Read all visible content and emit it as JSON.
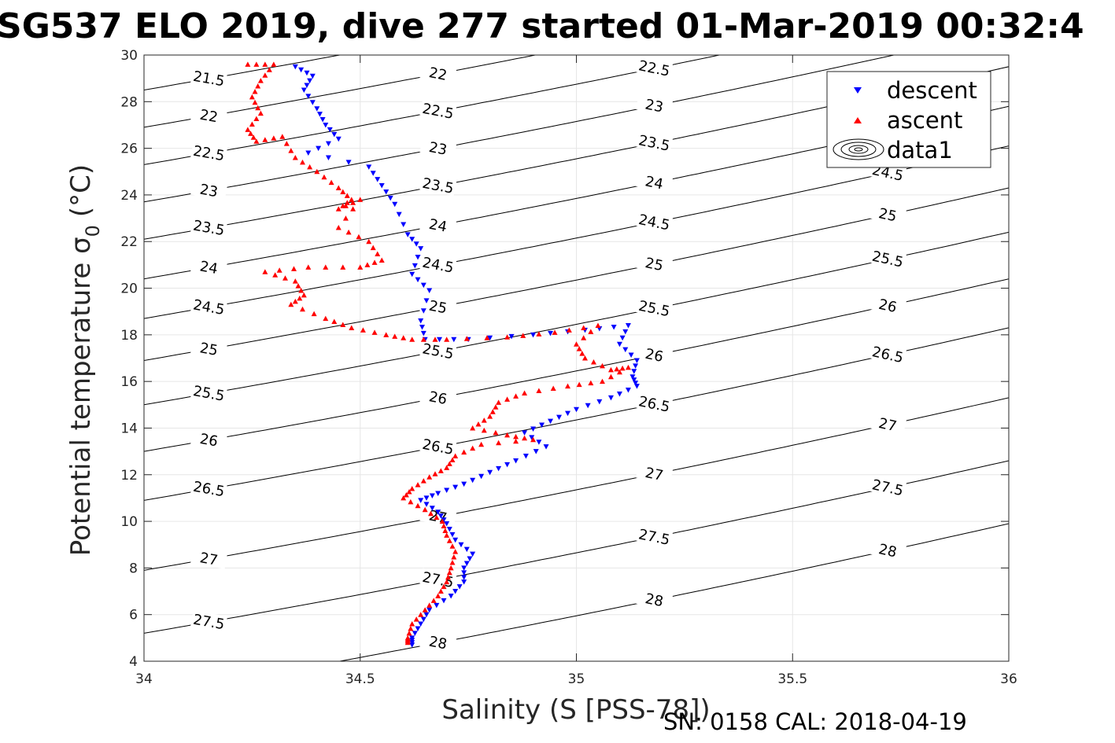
{
  "chart_data": {
    "type": "scatter",
    "title": "SG537 ELO 2019, dive 277 started 01-Mar-2019 00:32:4",
    "xlabel": "Salinity (S [PSS-78])",
    "ylabel_main": "Potential temperature σ",
    "ylabel_sub": "0",
    "ylabel_unit": "(°C)",
    "xlim": [
      34,
      36
    ],
    "ylim": [
      4,
      30
    ],
    "x_ticks": [
      "34",
      "34.5",
      "35",
      "35.5",
      "36"
    ],
    "y_ticks": [
      "4",
      "6",
      "8",
      "10",
      "12",
      "14",
      "16",
      "18",
      "20",
      "22",
      "24",
      "26",
      "28",
      "30"
    ],
    "grid": true,
    "legend_position": "top-right",
    "legend": [
      "descent",
      "ascent",
      "data1"
    ],
    "footer": "SN: 0158  CAL: 2018-04-19",
    "colors": {
      "descent": "#0000ff",
      "ascent": "#ff0000",
      "contour": "#000000",
      "grid": "#e6e6e6"
    },
    "contours": {
      "levels": [
        "21.5",
        "22",
        "22.5",
        "23",
        "23.5",
        "24",
        "24.5",
        "25",
        "25.5",
        "26",
        "26.5",
        "27",
        "27.5",
        "28"
      ],
      "reference_intercepts": [
        {
          "level": 21.5,
          "temperature_at_34": 28.5
        },
        {
          "level": 22,
          "temperature_at_34": 26.9
        },
        {
          "level": 22.5,
          "temperature_at_34": 25.3
        },
        {
          "level": 23,
          "temperature_at_34": 23.7
        },
        {
          "level": 23.5,
          "temperature_at_34": 22.1
        },
        {
          "level": 24,
          "temperature_at_34": 20.4
        },
        {
          "level": 24.5,
          "temperature_at_34": 18.7
        },
        {
          "level": 25,
          "temperature_at_34": 16.9
        },
        {
          "level": 25.5,
          "temperature_at_34": 15.0
        },
        {
          "level": 26,
          "temperature_at_34": 13.0
        },
        {
          "level": 26.5,
          "temperature_at_34": 10.9
        },
        {
          "level": 27,
          "temperature_at_34": 7.9
        },
        {
          "level": 27.5,
          "temperature_at_34": 5.2
        },
        {
          "level": 28,
          "temperature_at_34": 2.5
        }
      ]
    },
    "series": [
      {
        "name": "descent",
        "marker": "triangle-down",
        "points": [
          [
            34.35,
            29.5
          ],
          [
            34.39,
            29.1
          ],
          [
            34.37,
            28.5
          ],
          [
            34.4,
            27.7
          ],
          [
            34.42,
            27.0
          ],
          [
            34.45,
            26.4
          ],
          [
            34.38,
            25.8
          ],
          [
            34.52,
            25.2
          ],
          [
            34.55,
            24.4
          ],
          [
            34.58,
            23.6
          ],
          [
            34.61,
            22.3
          ],
          [
            34.64,
            21.7
          ],
          [
            34.62,
            20.6
          ],
          [
            34.66,
            19.9
          ],
          [
            34.64,
            18.6
          ],
          [
            34.65,
            17.8
          ],
          [
            34.75,
            17.8
          ],
          [
            34.9,
            18.0
          ],
          [
            35.02,
            18.2
          ],
          [
            35.12,
            18.4
          ],
          [
            35.1,
            17.6
          ],
          [
            35.14,
            16.9
          ],
          [
            35.13,
            16.2
          ],
          [
            35.14,
            15.8
          ],
          [
            35.08,
            15.3
          ],
          [
            35.0,
            14.8
          ],
          [
            34.94,
            14.3
          ],
          [
            34.88,
            13.8
          ],
          [
            34.93,
            13.2
          ],
          [
            34.86,
            12.6
          ],
          [
            34.8,
            12.1
          ],
          [
            34.74,
            11.6
          ],
          [
            34.68,
            11.2
          ],
          [
            34.64,
            10.9
          ],
          [
            34.68,
            10.4
          ],
          [
            34.7,
            9.9
          ],
          [
            34.72,
            9.2
          ],
          [
            34.76,
            8.6
          ],
          [
            34.74,
            8.0
          ],
          [
            34.74,
            7.4
          ],
          [
            34.71,
            6.8
          ],
          [
            34.66,
            6.2
          ],
          [
            34.64,
            5.6
          ],
          [
            34.62,
            5.0
          ],
          [
            34.62,
            4.7
          ]
        ]
      },
      {
        "name": "ascent",
        "marker": "triangle-up",
        "points": [
          [
            34.24,
            29.6
          ],
          [
            34.3,
            29.6
          ],
          [
            34.27,
            28.9
          ],
          [
            34.25,
            28.2
          ],
          [
            34.27,
            27.5
          ],
          [
            34.24,
            26.8
          ],
          [
            34.26,
            26.3
          ],
          [
            34.32,
            26.5
          ],
          [
            34.35,
            25.6
          ],
          [
            34.4,
            25.0
          ],
          [
            34.45,
            24.3
          ],
          [
            34.48,
            23.8
          ],
          [
            34.45,
            23.4
          ],
          [
            34.5,
            23.8
          ],
          [
            34.45,
            22.6
          ],
          [
            34.52,
            22.0
          ],
          [
            34.55,
            21.2
          ],
          [
            34.5,
            20.9
          ],
          [
            34.38,
            20.9
          ],
          [
            34.28,
            20.7
          ],
          [
            34.35,
            20.3
          ],
          [
            34.37,
            19.7
          ],
          [
            34.34,
            19.3
          ],
          [
            34.42,
            18.7
          ],
          [
            34.48,
            18.3
          ],
          [
            34.56,
            18.0
          ],
          [
            34.62,
            17.8
          ],
          [
            34.7,
            17.8
          ],
          [
            34.84,
            17.9
          ],
          [
            34.95,
            18.1
          ],
          [
            35.05,
            18.4
          ],
          [
            35.0,
            17.6
          ],
          [
            35.02,
            17.0
          ],
          [
            35.08,
            16.5
          ],
          [
            35.12,
            16.6
          ],
          [
            35.06,
            16.0
          ],
          [
            34.98,
            15.8
          ],
          [
            34.88,
            15.5
          ],
          [
            34.82,
            15.1
          ],
          [
            34.8,
            14.5
          ],
          [
            34.76,
            14.0
          ],
          [
            34.84,
            13.7
          ],
          [
            34.9,
            13.5
          ],
          [
            34.78,
            13.3
          ],
          [
            34.72,
            12.8
          ],
          [
            34.7,
            12.3
          ],
          [
            34.66,
            11.9
          ],
          [
            34.62,
            11.4
          ],
          [
            34.6,
            11.0
          ],
          [
            34.65,
            10.5
          ],
          [
            34.69,
            10.0
          ],
          [
            34.7,
            9.4
          ],
          [
            34.72,
            8.7
          ],
          [
            34.71,
            8.0
          ],
          [
            34.7,
            7.4
          ],
          [
            34.68,
            6.8
          ],
          [
            34.65,
            6.2
          ],
          [
            34.62,
            5.6
          ],
          [
            34.61,
            5.0
          ],
          [
            34.61,
            4.8
          ]
        ]
      }
    ]
  }
}
